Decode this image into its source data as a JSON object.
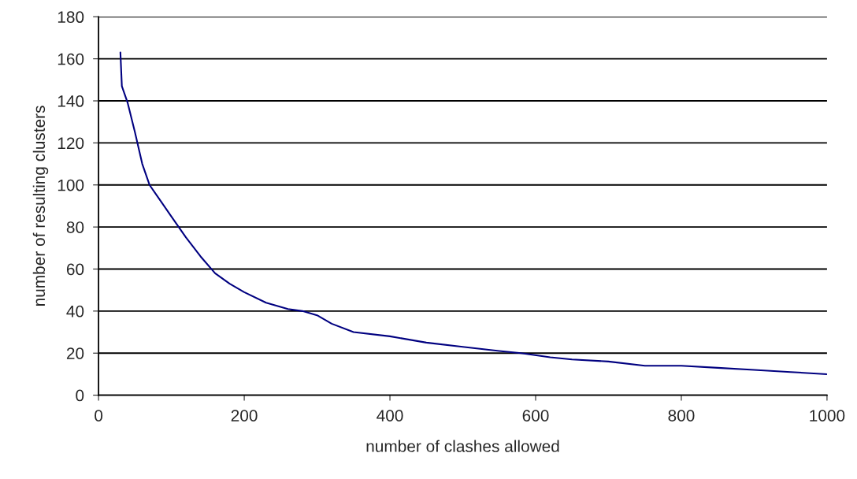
{
  "chart_data": {
    "type": "line",
    "xlabel": "number of clashes allowed",
    "ylabel": "number of resulting clusters",
    "series": [
      {
        "color": "#000080",
        "x": [
          30,
          32,
          40,
          50,
          60,
          68,
          70,
          80,
          100,
          120,
          140,
          160,
          180,
          200,
          230,
          260,
          280,
          300,
          320,
          350,
          400,
          450,
          500,
          550,
          580,
          620,
          650,
          700,
          750,
          800,
          850,
          900,
          950,
          1000
        ],
        "values": [
          163,
          147,
          139,
          125,
          110,
          102,
          100,
          95,
          85,
          75,
          66,
          58,
          53,
          49,
          44,
          41,
          40,
          38,
          34,
          30,
          28,
          25,
          23,
          21,
          20,
          18,
          17,
          16,
          14,
          14,
          13,
          12,
          11,
          10
        ]
      }
    ],
    "xlim": [
      0,
      1000
    ],
    "xticks": [
      0,
      200,
      400,
      600,
      800,
      1000
    ],
    "ylim": [
      0,
      180
    ],
    "yticks": [
      0,
      20,
      40,
      60,
      80,
      100,
      120,
      140,
      160,
      180
    ],
    "grid": "y",
    "legend": false,
    "marker": "none",
    "line_style": "solid"
  }
}
